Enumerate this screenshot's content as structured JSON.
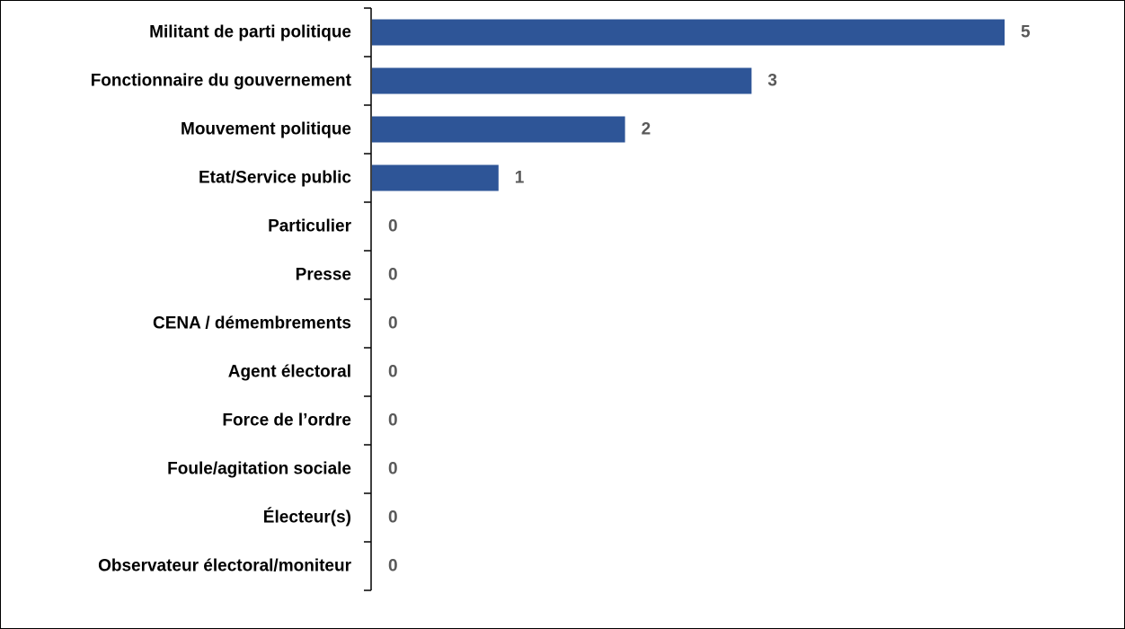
{
  "chart_data": {
    "type": "bar",
    "orientation": "horizontal",
    "title": "",
    "xlabel": "",
    "ylabel": "",
    "categories": [
      "Militant de parti politique",
      "Fonctionnaire du gouvernement",
      "Mouvement politique",
      "Etat/Service public",
      "Particulier",
      "Presse",
      "CENA / démembrements",
      "Agent électoral",
      "Force de l’ordre",
      "Foule/agitation sociale",
      "Électeur(s)",
      "Observateur électoral/moniteur"
    ],
    "values": [
      5,
      3,
      2,
      1,
      0,
      0,
      0,
      0,
      0,
      0,
      0,
      0
    ],
    "xlim": [
      0,
      5.5
    ],
    "grid": false,
    "legend": "none",
    "data_labels": true,
    "colors": {
      "bar": "#2E5597",
      "value_label": "#595959",
      "category_label": "#000000",
      "axis": "#000000"
    }
  }
}
